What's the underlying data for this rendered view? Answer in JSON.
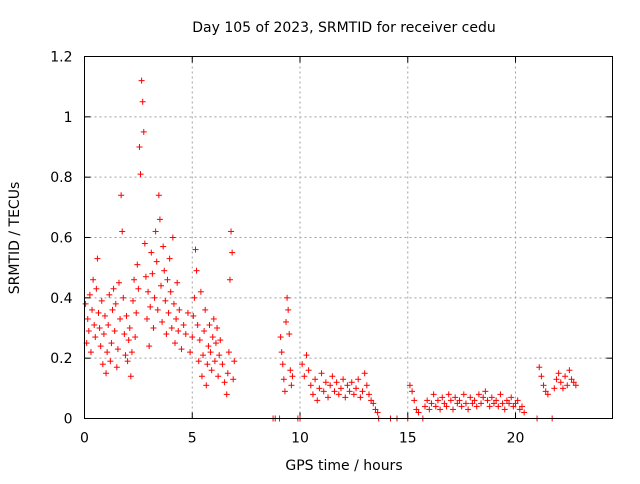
{
  "chart_data": {
    "type": "scatter",
    "title": "Day 105 of 2023, SRMTID for receiver cedu",
    "xlabel": "GPS time / hours",
    "ylabel": "SRMTID / TECUs",
    "xlim": [
      0,
      24.5
    ],
    "ylim": [
      0,
      1.2
    ],
    "x_ticks": [
      0,
      5,
      10,
      15,
      20
    ],
    "x_tick_labels": [
      "0",
      "5",
      "10",
      "15",
      "20"
    ],
    "y_ticks": [
      0,
      0.2,
      0.4,
      0.6,
      0.8,
      1.0,
      1.2
    ],
    "y_tick_labels": [
      "0",
      "0.2",
      "0.4",
      "0.6",
      "0.8",
      "1",
      "1.2"
    ],
    "grid": true,
    "marker": "+",
    "marker_color": "#ff0000",
    "series": [
      {
        "name": "SRMTID",
        "points": [
          [
            0.05,
            0.38
          ],
          [
            0.1,
            0.25
          ],
          [
            0.15,
            0.33
          ],
          [
            0.2,
            0.29
          ],
          [
            0.25,
            0.41
          ],
          [
            0.3,
            0.22
          ],
          [
            0.35,
            0.36
          ],
          [
            0.4,
            0.46
          ],
          [
            0.45,
            0.31
          ],
          [
            0.5,
            0.27
          ],
          [
            0.55,
            0.43
          ],
          [
            0.6,
            0.53
          ],
          [
            0.65,
            0.35
          ],
          [
            0.7,
            0.3
          ],
          [
            0.75,
            0.24
          ],
          [
            0.8,
            0.39
          ],
          [
            0.85,
            0.18
          ],
          [
            0.9,
            0.28
          ],
          [
            0.95,
            0.34
          ],
          [
            1.0,
            0.15
          ],
          [
            1.05,
            0.22
          ],
          [
            1.1,
            0.31
          ],
          [
            1.15,
            0.41
          ],
          [
            1.2,
            0.19
          ],
          [
            1.25,
            0.25
          ],
          [
            1.3,
            0.36
          ],
          [
            1.35,
            0.43
          ],
          [
            1.4,
            0.29
          ],
          [
            1.45,
            0.38
          ],
          [
            1.5,
            0.17
          ],
          [
            1.55,
            0.23
          ],
          [
            1.6,
            0.45
          ],
          [
            1.65,
            0.33
          ],
          [
            1.7,
            0.74
          ],
          [
            1.75,
            0.62
          ],
          [
            1.8,
            0.4
          ],
          [
            1.85,
            0.28
          ],
          [
            1.9,
            0.21
          ],
          [
            1.95,
            0.34
          ],
          [
            2.0,
            0.19
          ],
          [
            2.05,
            0.26
          ],
          [
            2.1,
            0.3
          ],
          [
            2.15,
            0.14
          ],
          [
            2.2,
            0.22
          ],
          [
            2.25,
            0.39
          ],
          [
            2.3,
            0.46
          ],
          [
            2.35,
            0.27
          ],
          [
            2.4,
            0.35
          ],
          [
            2.45,
            0.51
          ],
          [
            2.5,
            0.43
          ],
          [
            2.55,
            0.9
          ],
          [
            2.6,
            0.81
          ],
          [
            2.65,
            1.12
          ],
          [
            2.7,
            1.05
          ],
          [
            2.75,
            0.95
          ],
          [
            2.8,
            0.58
          ],
          [
            2.85,
            0.47
          ],
          [
            2.9,
            0.33
          ],
          [
            2.95,
            0.42
          ],
          [
            3.0,
            0.24
          ],
          [
            3.05,
            0.37
          ],
          [
            3.1,
            0.55
          ],
          [
            3.15,
            0.48
          ],
          [
            3.2,
            0.3
          ],
          [
            3.25,
            0.4
          ],
          [
            3.3,
            0.62
          ],
          [
            3.35,
            0.52
          ],
          [
            3.4,
            0.36
          ],
          [
            3.45,
            0.74
          ],
          [
            3.5,
            0.66
          ],
          [
            3.55,
            0.44
          ],
          [
            3.6,
            0.32
          ],
          [
            3.65,
            0.57
          ],
          [
            3.7,
            0.49
          ],
          [
            3.75,
            0.39
          ],
          [
            3.8,
            0.28
          ],
          [
            3.85,
            0.46
          ],
          [
            3.9,
            0.35
          ],
          [
            3.95,
            0.53
          ],
          [
            4.0,
            0.42
          ],
          [
            4.05,
            0.3
          ],
          [
            4.1,
            0.6
          ],
          [
            4.15,
            0.38
          ],
          [
            4.2,
            0.25
          ],
          [
            4.25,
            0.33
          ],
          [
            4.3,
            0.45
          ],
          [
            4.35,
            0.29
          ],
          [
            4.4,
            0.36
          ],
          [
            4.5,
            0.23
          ],
          [
            4.6,
            0.31
          ],
          [
            4.7,
            0.28
          ],
          [
            4.8,
            0.35
          ],
          [
            4.9,
            0.22
          ],
          [
            5.0,
            0.27
          ],
          [
            5.05,
            0.34
          ],
          [
            5.1,
            0.4
          ],
          [
            5.15,
            0.56
          ],
          [
            5.2,
            0.49
          ],
          [
            5.25,
            0.31
          ],
          [
            5.3,
            0.19
          ],
          [
            5.35,
            0.26
          ],
          [
            5.4,
            0.42
          ],
          [
            5.45,
            0.14
          ],
          [
            5.5,
            0.21
          ],
          [
            5.55,
            0.29
          ],
          [
            5.6,
            0.36
          ],
          [
            5.65,
            0.11
          ],
          [
            5.7,
            0.18
          ],
          [
            5.75,
            0.24
          ],
          [
            5.8,
            0.31
          ],
          [
            5.85,
            0.22
          ],
          [
            5.9,
            0.16
          ],
          [
            5.95,
            0.27
          ],
          [
            6.0,
            0.33
          ],
          [
            6.05,
            0.19
          ],
          [
            6.1,
            0.25
          ],
          [
            6.15,
            0.3
          ],
          [
            6.2,
            0.14
          ],
          [
            6.25,
            0.21
          ],
          [
            6.3,
            0.26
          ],
          [
            6.4,
            0.18
          ],
          [
            6.5,
            0.12
          ],
          [
            6.6,
            0.08
          ],
          [
            6.65,
            0.15
          ],
          [
            6.7,
            0.22
          ],
          [
            6.75,
            0.46
          ],
          [
            6.8,
            0.62
          ],
          [
            6.85,
            0.55
          ],
          [
            6.9,
            0.13
          ],
          [
            6.95,
            0.19
          ],
          [
            8.75,
            0.0
          ],
          [
            8.85,
            0.0
          ],
          [
            9.05,
            0.0
          ],
          [
            9.1,
            0.27
          ],
          [
            9.15,
            0.22
          ],
          [
            9.2,
            0.18
          ],
          [
            9.25,
            0.13
          ],
          [
            9.3,
            0.09
          ],
          [
            9.35,
            0.32
          ],
          [
            9.4,
            0.4
          ],
          [
            9.45,
            0.36
          ],
          [
            9.5,
            0.28
          ],
          [
            9.55,
            0.16
          ],
          [
            9.6,
            0.11
          ],
          [
            9.65,
            0.14
          ],
          [
            9.9,
            0.0
          ],
          [
            10.0,
            0.0
          ],
          [
            10.1,
            0.18
          ],
          [
            10.2,
            0.14
          ],
          [
            10.3,
            0.21
          ],
          [
            10.4,
            0.16
          ],
          [
            10.5,
            0.11
          ],
          [
            10.6,
            0.08
          ],
          [
            10.7,
            0.13
          ],
          [
            10.8,
            0.06
          ],
          [
            10.9,
            0.1
          ],
          [
            11.0,
            0.15
          ],
          [
            11.1,
            0.09
          ],
          [
            11.2,
            0.12
          ],
          [
            11.3,
            0.07
          ],
          [
            11.4,
            0.11
          ],
          [
            11.5,
            0.14
          ],
          [
            11.6,
            0.09
          ],
          [
            11.7,
            0.12
          ],
          [
            11.8,
            0.08
          ],
          [
            11.9,
            0.1
          ],
          [
            12.0,
            0.13
          ],
          [
            12.1,
            0.07
          ],
          [
            12.2,
            0.11
          ],
          [
            12.3,
            0.09
          ],
          [
            12.4,
            0.12
          ],
          [
            12.5,
            0.08
          ],
          [
            12.6,
            0.1
          ],
          [
            12.7,
            0.13
          ],
          [
            12.8,
            0.07
          ],
          [
            12.9,
            0.09
          ],
          [
            13.0,
            0.15
          ],
          [
            13.1,
            0.11
          ],
          [
            13.2,
            0.08
          ],
          [
            13.3,
            0.06
          ],
          [
            13.4,
            0.05
          ],
          [
            13.5,
            0.03
          ],
          [
            13.6,
            0.02
          ],
          [
            13.65,
            0.0
          ],
          [
            14.2,
            0.0
          ],
          [
            14.5,
            0.0
          ],
          [
            15.0,
            0.0
          ],
          [
            15.1,
            0.11
          ],
          [
            15.2,
            0.09
          ],
          [
            15.3,
            0.06
          ],
          [
            15.4,
            0.03
          ],
          [
            15.5,
            0.02
          ],
          [
            15.7,
            0.0
          ],
          [
            15.8,
            0.04
          ],
          [
            15.9,
            0.06
          ],
          [
            16.0,
            0.03
          ],
          [
            16.1,
            0.05
          ],
          [
            16.2,
            0.08
          ],
          [
            16.3,
            0.04
          ],
          [
            16.4,
            0.06
          ],
          [
            16.5,
            0.03
          ],
          [
            16.6,
            0.07
          ],
          [
            16.7,
            0.05
          ],
          [
            16.8,
            0.04
          ],
          [
            16.9,
            0.08
          ],
          [
            17.0,
            0.06
          ],
          [
            17.1,
            0.03
          ],
          [
            17.2,
            0.07
          ],
          [
            17.3,
            0.05
          ],
          [
            17.4,
            0.06
          ],
          [
            17.5,
            0.04
          ],
          [
            17.6,
            0.08
          ],
          [
            17.7,
            0.05
          ],
          [
            17.8,
            0.03
          ],
          [
            17.9,
            0.07
          ],
          [
            18.0,
            0.05
          ],
          [
            18.1,
            0.06
          ],
          [
            18.2,
            0.04
          ],
          [
            18.3,
            0.08
          ],
          [
            18.4,
            0.05
          ],
          [
            18.5,
            0.07
          ],
          [
            18.6,
            0.09
          ],
          [
            18.7,
            0.06
          ],
          [
            18.8,
            0.04
          ],
          [
            18.9,
            0.07
          ],
          [
            19.0,
            0.05
          ],
          [
            19.1,
            0.06
          ],
          [
            19.2,
            0.04
          ],
          [
            19.3,
            0.08
          ],
          [
            19.4,
            0.05
          ],
          [
            19.5,
            0.03
          ],
          [
            19.6,
            0.06
          ],
          [
            19.7,
            0.05
          ],
          [
            19.8,
            0.07
          ],
          [
            19.9,
            0.04
          ],
          [
            20.0,
            0.05
          ],
          [
            20.1,
            0.06
          ],
          [
            20.2,
            0.03
          ],
          [
            20.3,
            0.04
          ],
          [
            20.4,
            0.02
          ],
          [
            21.0,
            0.0
          ],
          [
            21.7,
            0.0
          ],
          [
            21.1,
            0.17
          ],
          [
            21.2,
            0.14
          ],
          [
            21.3,
            0.11
          ],
          [
            21.4,
            0.09
          ],
          [
            21.5,
            0.08
          ],
          [
            21.8,
            0.1
          ],
          [
            21.9,
            0.13
          ],
          [
            22.0,
            0.15
          ],
          [
            22.1,
            0.12
          ],
          [
            22.2,
            0.1
          ],
          [
            22.3,
            0.14
          ],
          [
            22.4,
            0.11
          ],
          [
            22.5,
            0.16
          ],
          [
            22.6,
            0.13
          ],
          [
            22.7,
            0.12
          ],
          [
            22.8,
            0.11
          ]
        ]
      }
    ]
  }
}
